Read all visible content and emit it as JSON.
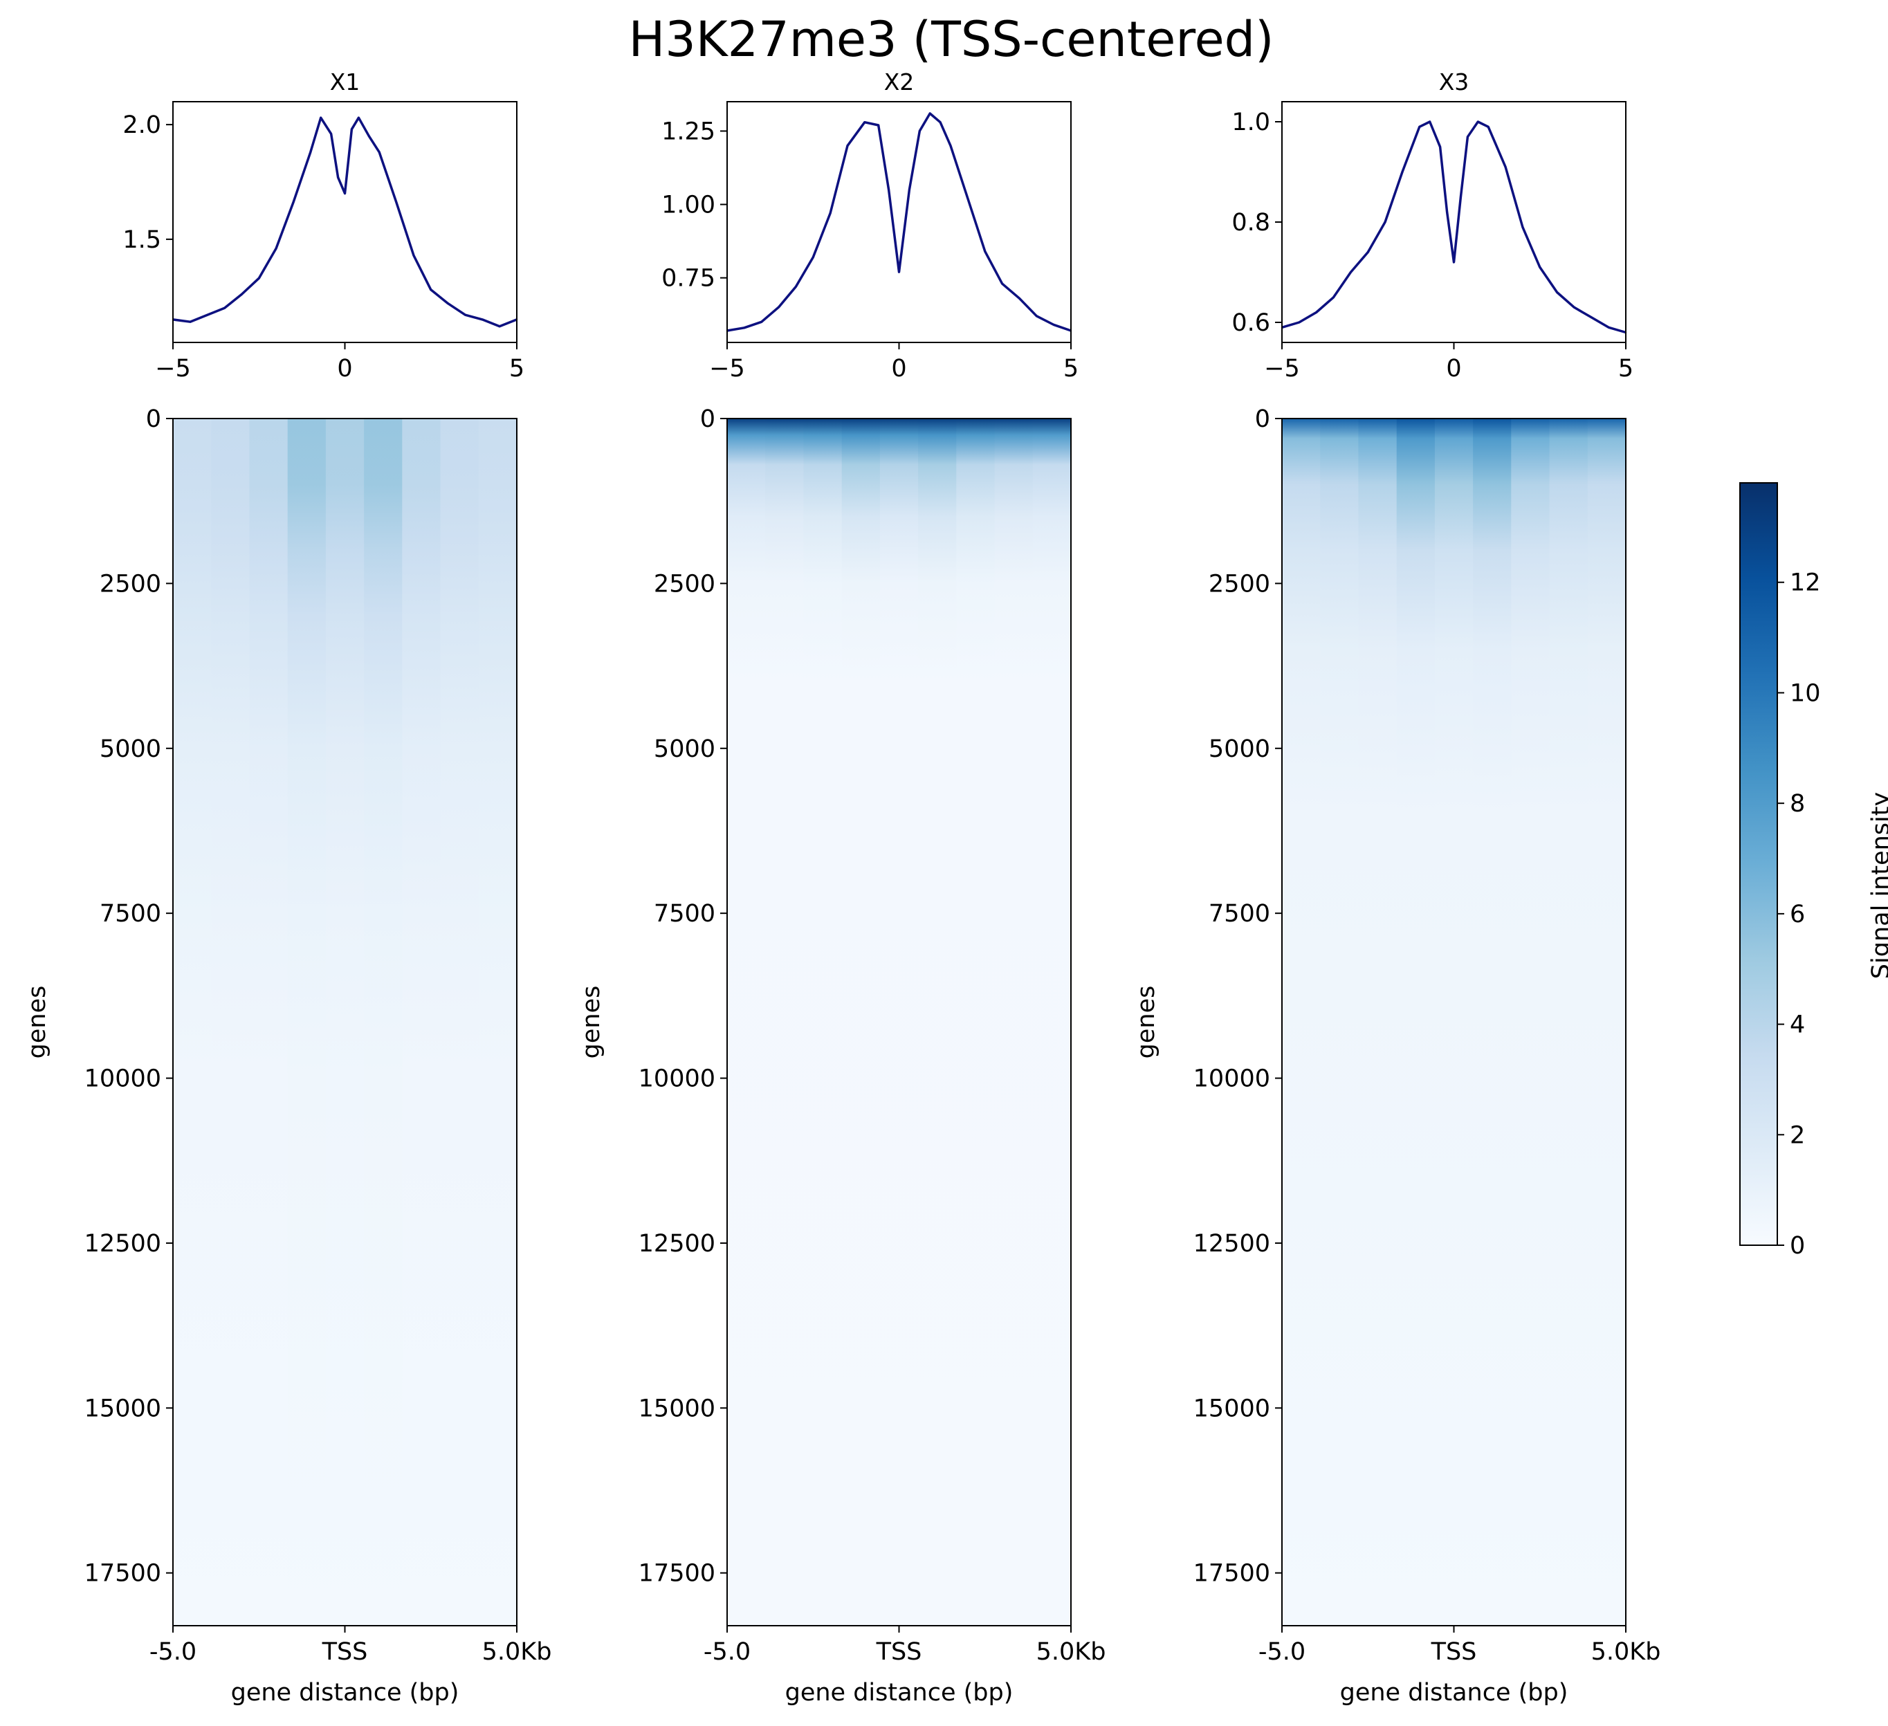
{
  "figure": {
    "title": "H3K27me3 (TSS-centered)"
  },
  "chart_data": [
    {
      "type": "line",
      "panel": "profile",
      "title": "X1",
      "xlim": [
        -5,
        5
      ],
      "xticks": [
        "−5",
        "0",
        "5"
      ],
      "ylim": [
        1.05,
        2.1
      ],
      "yticks": [
        1.5,
        2.0
      ],
      "ytick_labels": [
        "1.5",
        "2.0"
      ],
      "line_color": "#0d1180",
      "x": [
        -5,
        -4.5,
        -4,
        -3.5,
        -3,
        -2.5,
        -2,
        -1.5,
        -1,
        -0.7,
        -0.4,
        -0.2,
        0,
        0.2,
        0.4,
        0.7,
        1,
        1.5,
        2,
        2.5,
        3,
        3.5,
        4,
        4.5,
        5
      ],
      "y": [
        1.15,
        1.14,
        1.17,
        1.2,
        1.26,
        1.33,
        1.46,
        1.66,
        1.88,
        2.03,
        1.96,
        1.77,
        1.7,
        1.98,
        2.03,
        1.95,
        1.88,
        1.66,
        1.43,
        1.28,
        1.22,
        1.17,
        1.15,
        1.12,
        1.15
      ]
    },
    {
      "type": "line",
      "panel": "profile",
      "title": "X2",
      "xlim": [
        -5,
        5
      ],
      "xticks": [
        "−5",
        "0",
        "5"
      ],
      "ylim": [
        0.53,
        1.35
      ],
      "yticks": [
        0.75,
        1.0,
        1.25
      ],
      "ytick_labels": [
        "0.75",
        "1.00",
        "1.25"
      ],
      "line_color": "#0d1180",
      "x": [
        -5,
        -4.5,
        -4,
        -3.5,
        -3,
        -2.5,
        -2,
        -1.5,
        -1,
        -0.6,
        -0.3,
        0,
        0.3,
        0.6,
        0.9,
        1.2,
        1.5,
        2,
        2.5,
        3,
        3.5,
        4,
        4.5,
        5
      ],
      "y": [
        0.57,
        0.58,
        0.6,
        0.65,
        0.72,
        0.82,
        0.97,
        1.2,
        1.28,
        1.27,
        1.05,
        0.77,
        1.05,
        1.25,
        1.31,
        1.28,
        1.2,
        1.02,
        0.84,
        0.73,
        0.68,
        0.62,
        0.59,
        0.57
      ]
    },
    {
      "type": "line",
      "panel": "profile",
      "title": "X3",
      "xlim": [
        -5,
        5
      ],
      "xticks": [
        "−5",
        "0",
        "5"
      ],
      "ylim": [
        0.56,
        1.04
      ],
      "yticks": [
        0.6,
        0.8,
        1.0
      ],
      "ytick_labels": [
        "0.6",
        "0.8",
        "1.0"
      ],
      "line_color": "#0d1180",
      "x": [
        -5,
        -4.5,
        -4,
        -3.5,
        -3,
        -2.5,
        -2,
        -1.5,
        -1,
        -0.7,
        -0.4,
        -0.2,
        0,
        0.2,
        0.4,
        0.7,
        1,
        1.5,
        2,
        2.5,
        3,
        3.5,
        4,
        4.5,
        5
      ],
      "y": [
        0.59,
        0.6,
        0.62,
        0.65,
        0.7,
        0.74,
        0.8,
        0.9,
        0.99,
        1.0,
        0.95,
        0.82,
        0.72,
        0.85,
        0.97,
        1.0,
        0.99,
        0.91,
        0.79,
        0.71,
        0.66,
        0.63,
        0.61,
        0.59,
        0.58
      ]
    },
    {
      "type": "heatmap",
      "panel": "heatmap",
      "sample": "X1",
      "xlabel": "gene distance (bp)",
      "ylabel": "genes",
      "xticks": [
        "-5.0",
        "TSS",
        "5.0Kb"
      ],
      "ylim": [
        0,
        18300
      ],
      "yticks": [
        0,
        2500,
        5000,
        7500,
        10000,
        12500,
        15000,
        17500
      ],
      "ytick_labels": [
        "0",
        "2500",
        "5000",
        "7500",
        "10000",
        "12500",
        "15000",
        "17500"
      ],
      "row_intensity": [
        {
          "gene": 0,
          "flank": 3.2,
          "peak": 5.8
        },
        {
          "gene": 1000,
          "flank": 3.0,
          "peak": 5.6
        },
        {
          "gene": 2000,
          "flank": 2.6,
          "peak": 4.2
        },
        {
          "gene": 3000,
          "flank": 2.1,
          "peak": 3.0
        },
        {
          "gene": 5000,
          "flank": 1.3,
          "peak": 1.6
        },
        {
          "gene": 7500,
          "flank": 0.8,
          "peak": 0.9
        },
        {
          "gene": 10000,
          "flank": 0.5,
          "peak": 0.55
        },
        {
          "gene": 18300,
          "flank": 0.25,
          "peak": 0.25
        }
      ]
    },
    {
      "type": "heatmap",
      "panel": "heatmap",
      "sample": "X2",
      "xlabel": "gene distance (bp)",
      "ylabel": "genes",
      "xticks": [
        "-5.0",
        "TSS",
        "5.0Kb"
      ],
      "ylim": [
        0,
        18300
      ],
      "yticks": [
        0,
        2500,
        5000,
        7500,
        10000,
        12500,
        15000,
        17500
      ],
      "ytick_labels": [
        "0",
        "2500",
        "5000",
        "7500",
        "10000",
        "12500",
        "15000",
        "17500"
      ],
      "row_intensity": [
        {
          "gene": 0,
          "flank": 13.0,
          "peak": 13.0
        },
        {
          "gene": 250,
          "flank": 8.0,
          "peak": 8.5
        },
        {
          "gene": 700,
          "flank": 3.5,
          "peak": 5.0
        },
        {
          "gene": 1500,
          "flank": 1.6,
          "peak": 2.4
        },
        {
          "gene": 2500,
          "flank": 0.6,
          "peak": 0.8
        },
        {
          "gene": 4000,
          "flank": 0.3,
          "peak": 0.3
        },
        {
          "gene": 18300,
          "flank": 0.2,
          "peak": 0.2
        }
      ]
    },
    {
      "type": "heatmap",
      "panel": "heatmap",
      "sample": "X3",
      "xlabel": "gene distance (bp)",
      "ylabel": "genes",
      "xticks": [
        "-5.0",
        "TSS",
        "5.0Kb"
      ],
      "ylim": [
        0,
        18300
      ],
      "yticks": [
        0,
        2500,
        5000,
        7500,
        10000,
        12500,
        15000,
        17500
      ],
      "ytick_labels": [
        "0",
        "2500",
        "5000",
        "7500",
        "10000",
        "12500",
        "15000",
        "17500"
      ],
      "row_intensity": [
        {
          "gene": 0,
          "flank": 11.0,
          "peak": 12.0
        },
        {
          "gene": 300,
          "flank": 6.0,
          "peak": 8.5
        },
        {
          "gene": 1000,
          "flank": 3.5,
          "peak": 6.0
        },
        {
          "gene": 2000,
          "flank": 2.3,
          "peak": 3.3
        },
        {
          "gene": 3500,
          "flank": 1.2,
          "peak": 1.4
        },
        {
          "gene": 6000,
          "flank": 0.6,
          "peak": 0.6
        },
        {
          "gene": 18300,
          "flank": 0.25,
          "peak": 0.25
        }
      ]
    }
  ],
  "colorbar": {
    "label": "Signal intensity",
    "colormap": "Blues",
    "range": [
      0,
      13.8
    ],
    "ticks": [
      0,
      2,
      4,
      6,
      8,
      10,
      12
    ],
    "tick_labels": [
      "0",
      "2",
      "4",
      "6",
      "8",
      "10",
      "12"
    ],
    "colors": [
      "#f7fbff",
      "#deebf7",
      "#c6dbef",
      "#9ecae1",
      "#6baed6",
      "#4292c6",
      "#2171b5",
      "#08519c",
      "#08306b"
    ]
  }
}
